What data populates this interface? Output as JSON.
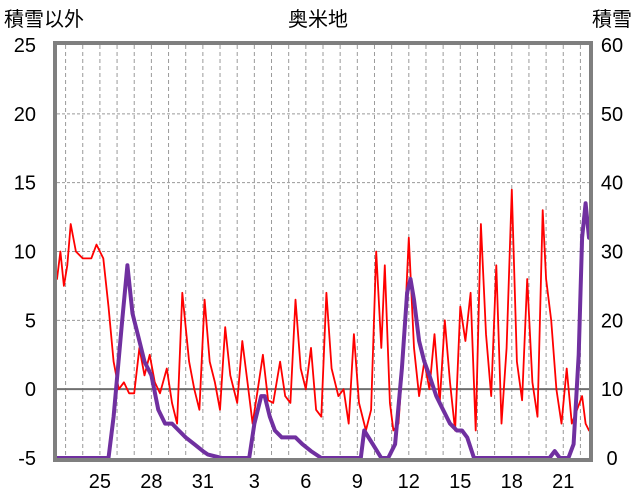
{
  "chart_data": {
    "type": "line",
    "title": "奥米地",
    "left_axis_label": "積雪以外",
    "right_axis_label": "積雪",
    "ylim_left": [
      -5,
      25
    ],
    "ylim_right": [
      0,
      60
    ],
    "left_ticks": [
      "25",
      "20",
      "15",
      "10",
      "5",
      "0",
      "-5"
    ],
    "right_ticks": [
      "60",
      "50",
      "40",
      "30",
      "20",
      "10",
      "0"
    ],
    "x_tick_labels": [
      "25",
      "28",
      "31",
      "3",
      "6",
      "9",
      "12",
      "15",
      "18",
      "21"
    ],
    "x_days": [
      25,
      28,
      31,
      34,
      37,
      40,
      43,
      46,
      49,
      52
    ],
    "xlim": [
      22.5,
      53.5
    ],
    "grid": true,
    "zero_line": true,
    "series": [
      {
        "axis": "left",
        "color": "#ff0000",
        "points": [
          [
            22.5,
            8
          ],
          [
            22.7,
            10
          ],
          [
            22.9,
            7.5
          ],
          [
            23.1,
            9
          ],
          [
            23.3,
            12
          ],
          [
            23.6,
            10
          ],
          [
            24.0,
            9.5
          ],
          [
            24.5,
            9.5
          ],
          [
            24.8,
            10.5
          ],
          [
            25.2,
            9.5
          ],
          [
            25.5,
            6
          ],
          [
            25.8,
            2
          ],
          [
            26.1,
            0
          ],
          [
            26.4,
            0.5
          ],
          [
            26.7,
            -0.3
          ],
          [
            27.0,
            -0.3
          ],
          [
            27.3,
            3
          ],
          [
            27.6,
            1
          ],
          [
            27.9,
            2.5
          ],
          [
            28.2,
            0.5
          ],
          [
            28.5,
            -0.3
          ],
          [
            28.9,
            1.5
          ],
          [
            29.2,
            -1
          ],
          [
            29.5,
            -2.5
          ],
          [
            29.8,
            7
          ],
          [
            30.2,
            2
          ],
          [
            30.5,
            0
          ],
          [
            30.8,
            -1.5
          ],
          [
            31.1,
            6.5
          ],
          [
            31.4,
            2
          ],
          [
            31.7,
            0.5
          ],
          [
            32.0,
            -1.5
          ],
          [
            32.3,
            4.5
          ],
          [
            32.6,
            1
          ],
          [
            33.0,
            -1
          ],
          [
            33.3,
            3.5
          ],
          [
            33.6,
            0.5
          ],
          [
            33.9,
            -2.5
          ],
          [
            34.2,
            0
          ],
          [
            34.5,
            2.5
          ],
          [
            34.8,
            -0.8
          ],
          [
            35.1,
            -1
          ],
          [
            35.5,
            2
          ],
          [
            35.8,
            -0.5
          ],
          [
            36.1,
            -1
          ],
          [
            36.4,
            6.5
          ],
          [
            36.7,
            1.5
          ],
          [
            37.0,
            0
          ],
          [
            37.3,
            3
          ],
          [
            37.6,
            -1.5
          ],
          [
            37.9,
            -2
          ],
          [
            38.2,
            7
          ],
          [
            38.5,
            1.5
          ],
          [
            38.9,
            -0.5
          ],
          [
            39.2,
            0
          ],
          [
            39.5,
            -2.5
          ],
          [
            39.8,
            4
          ],
          [
            40.1,
            -1
          ],
          [
            40.5,
            -3
          ],
          [
            40.8,
            -1.5
          ],
          [
            41.1,
            10
          ],
          [
            41.4,
            3
          ],
          [
            41.6,
            9
          ],
          [
            41.9,
            -1
          ],
          [
            42.1,
            -3
          ],
          [
            42.4,
            -2.5
          ],
          [
            42.7,
            3
          ],
          [
            43.0,
            11
          ],
          [
            43.3,
            3
          ],
          [
            43.6,
            -0.5
          ],
          [
            43.9,
            2
          ],
          [
            44.2,
            0
          ],
          [
            44.5,
            4
          ],
          [
            44.8,
            -1
          ],
          [
            45.1,
            5
          ],
          [
            45.4,
            0.5
          ],
          [
            45.7,
            -3
          ],
          [
            46.0,
            6
          ],
          [
            46.3,
            3.5
          ],
          [
            46.6,
            7
          ],
          [
            46.9,
            -3
          ],
          [
            47.2,
            12
          ],
          [
            47.5,
            4
          ],
          [
            47.8,
            -0.5
          ],
          [
            48.1,
            9
          ],
          [
            48.4,
            -2.5
          ],
          [
            48.7,
            3
          ],
          [
            49.0,
            14.5
          ],
          [
            49.3,
            2
          ],
          [
            49.6,
            -0.8
          ],
          [
            49.9,
            8
          ],
          [
            50.2,
            0.5
          ],
          [
            50.5,
            -2
          ],
          [
            50.8,
            13
          ],
          [
            51.0,
            8
          ],
          [
            51.3,
            5
          ],
          [
            51.6,
            0
          ],
          [
            51.9,
            -2.5
          ],
          [
            52.2,
            1.5
          ],
          [
            52.5,
            -2.5
          ],
          [
            52.8,
            -1.5
          ],
          [
            53.1,
            -0.5
          ],
          [
            53.3,
            -2.5
          ],
          [
            53.5,
            -3
          ]
        ]
      },
      {
        "axis": "right",
        "color": "#7030a0",
        "points": [
          [
            22.5,
            0
          ],
          [
            24.0,
            0
          ],
          [
            25.0,
            0
          ],
          [
            25.5,
            0
          ],
          [
            25.8,
            6
          ],
          [
            26.3,
            20
          ],
          [
            26.6,
            28
          ],
          [
            26.9,
            21
          ],
          [
            27.2,
            18
          ],
          [
            27.6,
            14
          ],
          [
            28.0,
            12
          ],
          [
            28.4,
            7
          ],
          [
            28.8,
            5
          ],
          [
            29.2,
            5
          ],
          [
            29.6,
            4
          ],
          [
            30.0,
            3
          ],
          [
            30.5,
            2
          ],
          [
            31.0,
            1
          ],
          [
            31.3,
            0.5
          ],
          [
            32.1,
            0
          ],
          [
            33.0,
            0
          ],
          [
            33.7,
            0
          ],
          [
            34.0,
            5
          ],
          [
            34.4,
            9
          ],
          [
            34.6,
            9
          ],
          [
            34.9,
            6
          ],
          [
            35.2,
            4
          ],
          [
            35.6,
            3
          ],
          [
            36.0,
            3
          ],
          [
            36.4,
            3
          ],
          [
            36.8,
            2
          ],
          [
            37.3,
            1
          ],
          [
            37.9,
            0
          ],
          [
            38.5,
            0
          ],
          [
            39.5,
            0
          ],
          [
            40.2,
            0
          ],
          [
            40.4,
            4
          ],
          [
            40.9,
            2
          ],
          [
            41.4,
            0
          ],
          [
            41.8,
            0
          ],
          [
            42.2,
            2
          ],
          [
            42.6,
            13
          ],
          [
            42.9,
            24
          ],
          [
            43.1,
            26
          ],
          [
            43.3,
            23
          ],
          [
            43.6,
            17
          ],
          [
            43.9,
            14
          ],
          [
            44.2,
            12
          ],
          [
            44.6,
            9
          ],
          [
            45.0,
            7
          ],
          [
            45.4,
            5
          ],
          [
            45.8,
            4
          ],
          [
            46.1,
            4
          ],
          [
            46.4,
            3
          ],
          [
            46.8,
            0
          ],
          [
            47.5,
            0
          ],
          [
            48.5,
            0
          ],
          [
            49.5,
            0
          ],
          [
            50.5,
            0
          ],
          [
            51.2,
            0
          ],
          [
            51.5,
            1
          ],
          [
            51.8,
            0
          ],
          [
            52.3,
            0
          ],
          [
            52.6,
            2
          ],
          [
            52.9,
            15
          ],
          [
            53.1,
            32
          ],
          [
            53.3,
            37
          ],
          [
            53.5,
            32
          ]
        ]
      }
    ]
  }
}
